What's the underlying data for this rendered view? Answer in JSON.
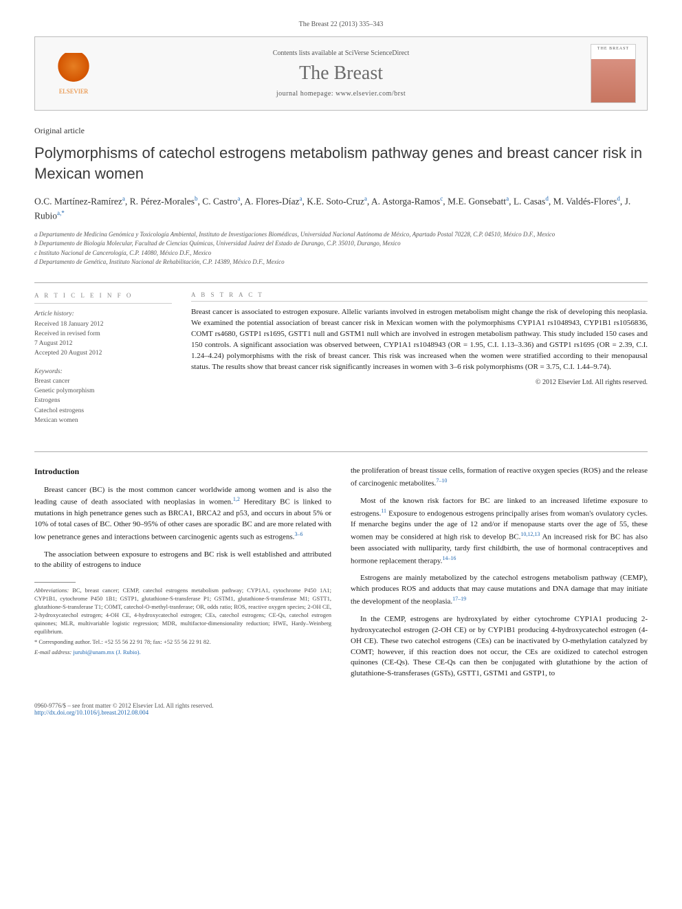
{
  "citation": "The Breast 22 (2013) 335–343",
  "journalBox": {
    "contentsLine": "Contents lists available at SciVerse ScienceDirect",
    "journalName": "The Breast",
    "homepage": "journal homepage: www.elsevier.com/brst",
    "publisherLabel": "ELSEVIER",
    "coverLabel": "THE BREAST"
  },
  "articleType": "Original article",
  "title": "Polymorphisms of catechol estrogens metabolism pathway genes and breast cancer risk in Mexican women",
  "authors": "O.C. Martínez-Ramírez a, R. Pérez-Morales b, C. Castro a, A. Flores-Díaz a, K.E. Soto-Cruz a, A. Astorga-Ramos c, M.E. Gonsebatt a, L. Casas d, M. Valdés-Flores d, J. Rubio a,*",
  "affiliations": [
    "a Departamento de Medicina Genómica y Toxicología Ambiental, Instituto de Investigaciones Biomédicas, Universidad Nacional Autónoma de México, Apartado Postal 70228, C.P. 04510, México D.F., Mexico",
    "b Departamento de Biología Molecular, Facultad de Ciencias Químicas, Universidad Juárez del Estado de Durango, C.P. 35010, Durango, Mexico",
    "c Instituto Nacional de Cancerología, C.P. 14080, México D.F., Mexico",
    "d Departamento de Genética, Instituto Nacional de Rehabilitación, C.P. 14389, México D.F., Mexico"
  ],
  "articleInfo": {
    "heading": "A R T I C L E   I N F O",
    "historyLabel": "Article history:",
    "received": "Received 18 January 2012",
    "revisedLabel": "Received in revised form",
    "revisedDate": "7 August 2012",
    "accepted": "Accepted 20 August 2012",
    "keywordsLabel": "Keywords:",
    "keywords": [
      "Breast cancer",
      "Genetic polymorphism",
      "Estrogens",
      "Catechol estrogens",
      "Mexican women"
    ]
  },
  "abstract": {
    "heading": "A B S T R A C T",
    "text": "Breast cancer is associated to estrogen exposure. Allelic variants involved in estrogen metabolism might change the risk of developing this neoplasia. We examined the potential association of breast cancer risk in Mexican women with the polymorphisms CYP1A1 rs1048943, CYP1B1 rs1056836, COMT rs4680, GSTP1 rs1695, GSTT1 null and GSTM1 null which are involved in estrogen metabolism pathway. This study included 150 cases and 150 controls. A significant association was observed between, CYP1A1 rs1048943 (OR = 1.95, C.I. 1.13–3.36) and GSTP1 rs1695 (OR = 2.39, C.I. 1.24–4.24) polymorphisms with the risk of breast cancer. This risk was increased when the women were stratified according to their menopausal status. The results show that breast cancer risk significantly increases in women with 3–6 risk polymorphisms (OR = 3.75, C.I. 1.44–9.74).",
    "copyright": "© 2012 Elsevier Ltd. All rights reserved."
  },
  "body": {
    "introHead": "Introduction",
    "p1": "Breast cancer (BC) is the most common cancer worldwide among women and is also the leading cause of death associated with neoplasias in women.1,2 Hereditary BC is linked to mutations in high penetrance genes such as BRCA1, BRCA2 and p53, and occurs in about 5% or 10% of total cases of BC. Other 90–95% of other cases are sporadic BC and are more related with low penetrance genes and interactions between carcinogenic agents such as estrogens.3–6",
    "p2": "The association between exposure to estrogens and BC risk is well established and attributed to the ability of estrogens to induce",
    "p3": "the proliferation of breast tissue cells, formation of reactive oxygen species (ROS) and the release of carcinogenic metabolites.7–10",
    "p4": "Most of the known risk factors for BC are linked to an increased lifetime exposure to estrogens.11 Exposure to endogenous estrogens principally arises from woman's ovulatory cycles. If menarche begins under the age of 12 and/or if menopause starts over the age of 55, these women may be considered at high risk to develop BC.10,12,13 An increased risk for BC has also been associated with nulliparity, tardy first childbirth, the use of hormonal contraceptives and hormone replacement therapy.14–16",
    "p5": "Estrogens are mainly metabolized by the catechol estrogens metabolism pathway (CEMP), which produces ROS and adducts that may cause mutations and DNA damage that may initiate the development of the neoplasia.17–19",
    "p6": "In the CEMP, estrogens are hydroxylated by either cytochrome CYP1A1 producing 2-hydroxycatechol estrogen (2-OH CE) or by CYP1B1 producing 4-hydroxycatechol estrogen (4-OH CE). These two catechol estrogens (CEs) can be inactivated by O-methylation catalyzed by COMT; however, if this reaction does not occur, the CEs are oxidized to catechol estrogen quinones (CE-Qs). These CE-Qs can then be conjugated with glutathione by the action of glutathione-S-transferases (GSTs), GSTT1, GSTM1 and GSTP1, to"
  },
  "footnotes": {
    "abbrevLabel": "Abbreviations:",
    "abbrev": "BC, breast cancer; CEMP, catechol estrogens metabolism pathway; CYP1A1, cytochrome P450 1A1; CYP1B1, cytochrome P450 1B1; GSTP1, glutathione-S-transferase P1; GSTM1, glutathione-S-transferase M1; GSTT1, glutathione-S-transferase T1; COMT, catechol-O-methyl-tranferase; OR, odds ratio; ROS, reactive oxygen species; 2-OH CE, 2-hydroxycatechol estrogen; 4-OH CE, 4-hydroxycatechol estrogen; CEs, catechol estrogens; CE-Qs, catechol estrogen quinones; MLR, multivariable logistic regression; MDR, multifactor-dimensionality reduction; HWE, Hardy–Weinberg equilibrium.",
    "corresp": "* Corresponding author. Tel.: +52 55 56 22 91 78; fax: +52 55 56 22 91 82.",
    "emailLabel": "E-mail address:",
    "email": "jurubi@unam.mx (J. Rubio)."
  },
  "footer": {
    "line1": "0960-9776/$ – see front matter © 2012 Elsevier Ltd. All rights reserved.",
    "doi": "http://dx.doi.org/10.1016/j.breast.2012.08.004"
  },
  "colors": {
    "link": "#2268b0",
    "publisher": "#e67e22",
    "headingGray": "#6b6b6b",
    "border": "#bbbbbb"
  }
}
